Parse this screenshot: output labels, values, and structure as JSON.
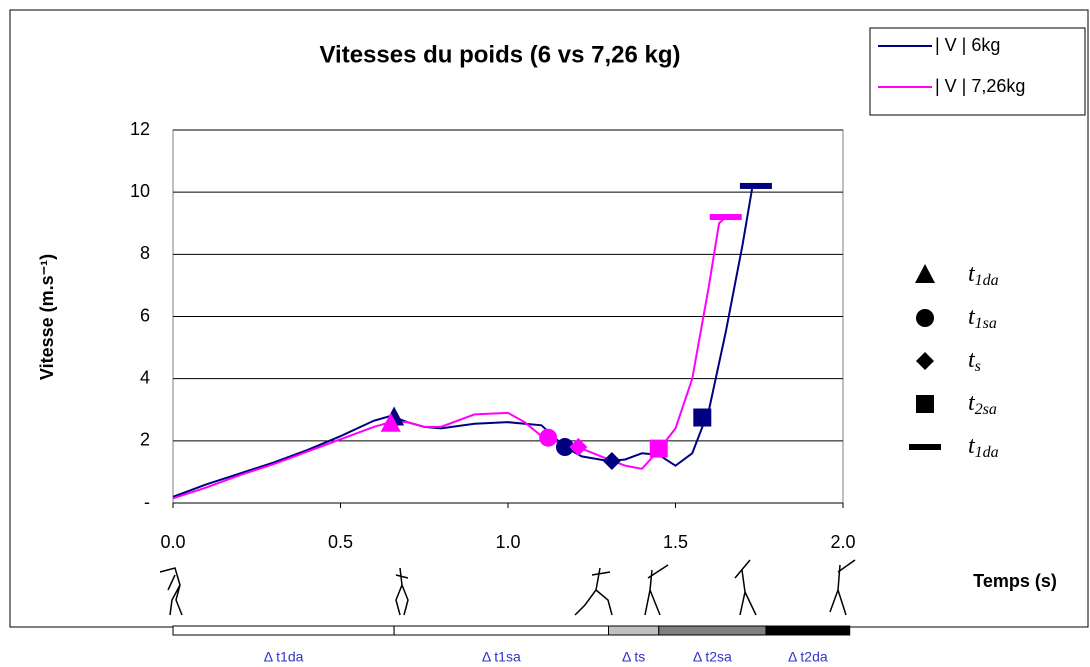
{
  "chart_data": {
    "type": "line",
    "title": "Vitesses du poids (6 vs 7,26 kg)",
    "x_label": "Temps (s)",
    "y_label": "Vitesse (m.s⁻¹)",
    "xlim": [
      0,
      2
    ],
    "xticks": [
      {
        "value": 0,
        "label": "0.0"
      },
      0.5,
      {
        "value": 1,
        "label": "1.0"
      },
      1.5,
      {
        "value": 2,
        "label": "2.0"
      }
    ],
    "ylim": [
      0,
      12
    ],
    "yticks": [
      {
        "value": 0,
        "label": "-"
      },
      2,
      4,
      6,
      8,
      10,
      12
    ],
    "grid": true,
    "series": [
      {
        "name": "| V | 6kg",
        "color": "#000080",
        "x": [
          0,
          0.1,
          0.2,
          0.3,
          0.4,
          0.5,
          0.6,
          0.65,
          0.7,
          0.75,
          0.8,
          0.9,
          1.0,
          1.1,
          1.17,
          1.22,
          1.3,
          1.35,
          1.4,
          1.45,
          1.5,
          1.55,
          1.6,
          1.65,
          1.7,
          1.73,
          1.77
        ],
        "values": [
          0.2,
          0.6,
          0.95,
          1.3,
          1.7,
          2.15,
          2.65,
          2.8,
          2.6,
          2.45,
          2.4,
          2.55,
          2.6,
          2.5,
          1.8,
          1.5,
          1.35,
          1.4,
          1.6,
          1.55,
          1.2,
          1.6,
          3.0,
          5.5,
          8.3,
          10.2,
          10.2
        ]
      },
      {
        "name": "| V | 7,26kg",
        "color": "#ff00ff",
        "x": [
          0,
          0.1,
          0.2,
          0.3,
          0.4,
          0.5,
          0.6,
          0.65,
          0.7,
          0.75,
          0.8,
          0.9,
          1.0,
          1.05,
          1.1,
          1.15,
          1.22,
          1.3,
          1.35,
          1.4,
          1.45,
          1.5,
          1.55,
          1.6,
          1.63,
          1.65,
          1.67
        ],
        "values": [
          0.15,
          0.5,
          0.9,
          1.25,
          1.65,
          2.05,
          2.45,
          2.6,
          2.6,
          2.45,
          2.45,
          2.85,
          2.9,
          2.6,
          2.15,
          1.95,
          1.75,
          1.4,
          1.2,
          1.1,
          1.7,
          2.4,
          4.0,
          7.0,
          9.0,
          9.2,
          9.2
        ]
      }
    ],
    "markers": [
      {
        "symbol": "t",
        "sub": "1da",
        "shape": "triangle",
        "points": [
          {
            "x": 0.66,
            "y": 2.75
          },
          {
            "x": 0.65,
            "y": 2.55
          }
        ]
      },
      {
        "symbol": "t",
        "sub": "1sa",
        "shape": "circle",
        "points": [
          {
            "x": 1.17,
            "y": 1.8
          },
          {
            "x": 1.12,
            "y": 2.1
          }
        ]
      },
      {
        "symbol": "t",
        "sub": "s",
        "shape": "diamond",
        "points": [
          {
            "x": 1.31,
            "y": 1.35
          },
          {
            "x": 1.21,
            "y": 1.8
          }
        ]
      },
      {
        "symbol": "t",
        "sub": "2sa",
        "shape": "square",
        "points": [
          {
            "x": 1.58,
            "y": 2.75
          },
          {
            "x": 1.45,
            "y": 1.75
          }
        ]
      },
      {
        "symbol": "t",
        "sub": "1da",
        "shape": "bar",
        "points": [
          {
            "x": 1.74,
            "y": 10.2
          },
          {
            "x": 1.65,
            "y": 9.2
          }
        ]
      }
    ],
    "phases": [
      {
        "label": "Δ t1da",
        "start": 0,
        "end": 0.66,
        "color": "#ffffff"
      },
      {
        "label": "Δ t1sa",
        "start": 0.66,
        "end": 1.3,
        "color": "#ffffff"
      },
      {
        "label": "Δ ts",
        "start": 1.3,
        "end": 1.45,
        "color": "#c0c0c0"
      },
      {
        "label": "Δ t2sa",
        "start": 1.45,
        "end": 1.77,
        "color": "#808080"
      },
      {
        "label": "Δ t2da",
        "start": 1.77,
        "end": 2.02,
        "color": "#000000"
      }
    ]
  }
}
